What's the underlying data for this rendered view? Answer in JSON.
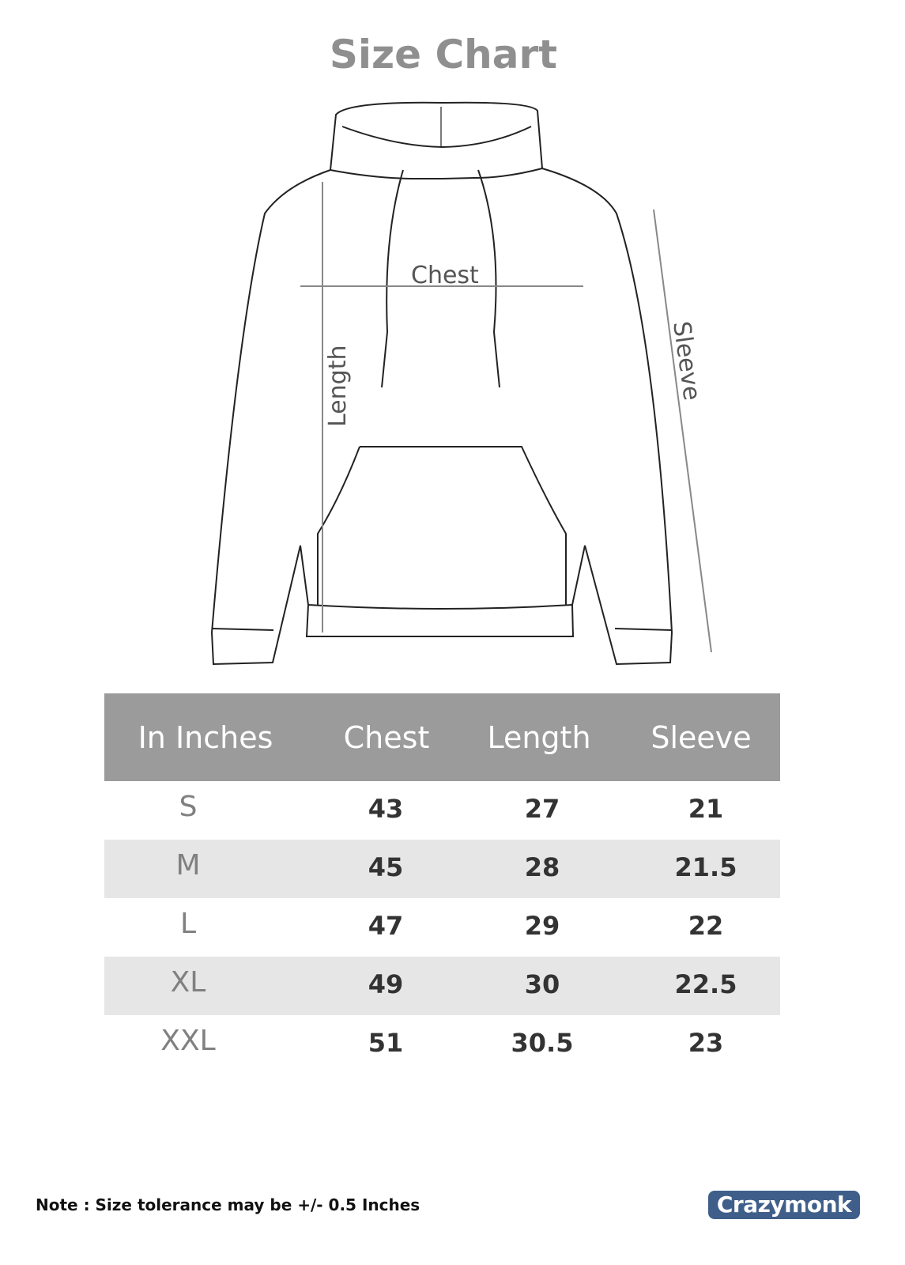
{
  "title": "Size Chart",
  "diagram": {
    "chest_label": "Chest",
    "length_label": "Length",
    "sleeve_label": "Sleeve"
  },
  "table": {
    "headers": [
      "In Inches",
      "Chest",
      "Length",
      "Sleeve"
    ],
    "rows": [
      [
        "S",
        "43",
        "27",
        "21"
      ],
      [
        "M",
        "45",
        "28",
        "21.5"
      ],
      [
        "L",
        "47",
        "29",
        "22"
      ],
      [
        "XL",
        "49",
        "30",
        "22.5"
      ],
      [
        "XXL",
        "51",
        "30.5",
        "23"
      ]
    ]
  },
  "note": "Note : Size tolerance may be +/-  0.5 Inches",
  "brand": "Crazymonk",
  "colors": {
    "header_bg": "#9b9b9b",
    "stripe": "#e6e6e6",
    "title": "#8f8f8f",
    "brand": "#3f5f8a"
  }
}
